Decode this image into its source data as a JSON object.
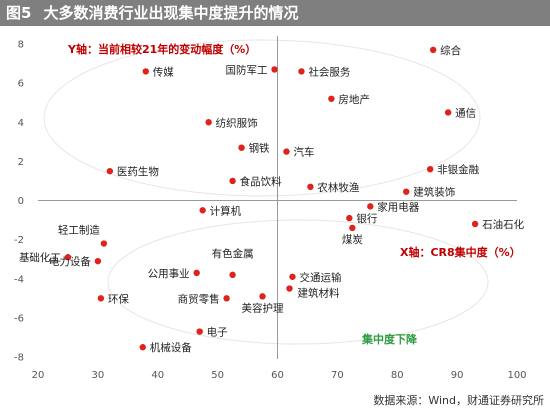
{
  "figure": {
    "number": "图5",
    "title": "大多数消费行业出现集中度提升的情况",
    "source": "数据来源：Wind，财通证券研究所"
  },
  "chart_data": {
    "type": "scatter",
    "xlabel": "X轴：CR8集中度（%）",
    "ylabel": "Y轴：当前相较21年的变动幅度（%）",
    "annotation": "集中度下降",
    "xlim": [
      20,
      100
    ],
    "ylim": [
      -8,
      8
    ],
    "x_ticks": [
      "20",
      "30",
      "40",
      "50",
      "60",
      "70",
      "80",
      "90",
      "100"
    ],
    "y_ticks": [
      "8",
      "6",
      "4",
      "2",
      "0",
      "-2",
      "-4",
      "-6",
      "-8"
    ],
    "vline_x": 60,
    "grid": false,
    "point_color": "#e0221c",
    "points": [
      {
        "label": "综合",
        "x": 86,
        "y": 7.7
      },
      {
        "label": "国防军工",
        "x": 59.5,
        "y": 6.7
      },
      {
        "label": "社会服务",
        "x": 64,
        "y": 6.6
      },
      {
        "label": "传媒",
        "x": 38,
        "y": 6.6
      },
      {
        "label": "房地产",
        "x": 69,
        "y": 5.2
      },
      {
        "label": "通信",
        "x": 88.5,
        "y": 4.5
      },
      {
        "label": "纺织服饰",
        "x": 48.5,
        "y": 4.0
      },
      {
        "label": "钢铁",
        "x": 54,
        "y": 2.7
      },
      {
        "label": "汽车",
        "x": 61.5,
        "y": 2.5
      },
      {
        "label": "医药生物",
        "x": 32,
        "y": 1.5
      },
      {
        "label": "非银金融",
        "x": 85.5,
        "y": 1.6
      },
      {
        "label": "食品饮料",
        "x": 52.5,
        "y": 1.0
      },
      {
        "label": "农林牧渔",
        "x": 65.5,
        "y": 0.7
      },
      {
        "label": "建筑装饰",
        "x": 81.5,
        "y": 0.45
      },
      {
        "label": "家用电器",
        "x": 75.5,
        "y": -0.3
      },
      {
        "label": "计算机",
        "x": 47.5,
        "y": -0.5
      },
      {
        "label": "银行",
        "x": 72,
        "y": -0.9
      },
      {
        "label": "煤炭",
        "x": 72.5,
        "y": -1.4
      },
      {
        "label": "石油石化",
        "x": 93,
        "y": -1.2
      },
      {
        "label": "轻工制造",
        "x": 31,
        "y": -2.2
      },
      {
        "label": "基础化工",
        "x": 25,
        "y": -2.9
      },
      {
        "label": "电力设备",
        "x": 30,
        "y": -3.1
      },
      {
        "label": "公用事业",
        "x": 46.5,
        "y": -3.7
      },
      {
        "label": "有色金属",
        "x": 52.5,
        "y": -3.8
      },
      {
        "label": "交通运输",
        "x": 62.5,
        "y": -3.9
      },
      {
        "label": "建筑材料",
        "x": 62,
        "y": -4.5
      },
      {
        "label": "环保",
        "x": 30.5,
        "y": -5.0
      },
      {
        "label": "商贸零售",
        "x": 51.5,
        "y": -5.0
      },
      {
        "label": "美容护理",
        "x": 57.5,
        "y": -4.9
      },
      {
        "label": "电子",
        "x": 47,
        "y": -6.7
      },
      {
        "label": "机械设备",
        "x": 37.5,
        "y": -7.5
      }
    ]
  }
}
